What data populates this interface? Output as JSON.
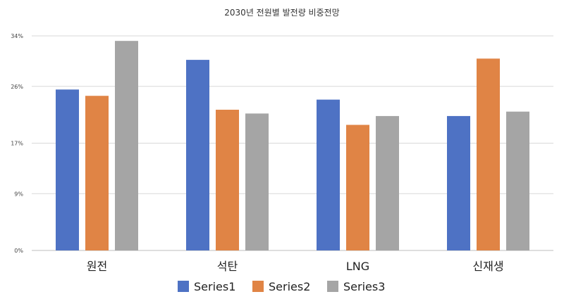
{
  "chart_data": {
    "type": "bar",
    "title": "2030년 전원별 발전량 비중전망",
    "xlabel": "",
    "ylabel": "",
    "categories": [
      "원전",
      "석탄",
      "LNG",
      "신재생"
    ],
    "series": [
      {
        "name": "Series1",
        "color": "#4e72c4",
        "values": [
          25.5,
          30.2,
          23.9,
          21.3
        ]
      },
      {
        "name": "Series2",
        "color": "#e08445",
        "values": [
          24.5,
          22.3,
          19.9,
          30.4
        ]
      },
      {
        "name": "Series3",
        "color": "#a5a5a5",
        "values": [
          33.2,
          21.7,
          21.3,
          22.0
        ]
      }
    ],
    "ylim": [
      0,
      34
    ],
    "yticks": [
      0,
      9,
      17,
      26,
      34
    ],
    "ytick_labels": [
      "0%",
      "9%",
      "17%",
      "26%",
      "34%"
    ],
    "grid": true,
    "legend_position": "bottom"
  }
}
